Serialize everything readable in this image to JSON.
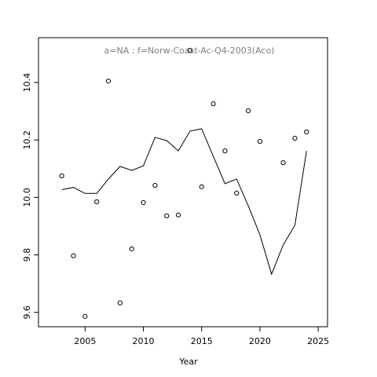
{
  "chart_data": {
    "type": "line",
    "title": "a=NA  :  f=Norw-Coast-Ac-Q4-2003(Aco)",
    "x_label": "Year",
    "x": [
      2003,
      2004,
      2005,
      2006,
      2007,
      2008,
      2009,
      2010,
      2011,
      2012,
      2013,
      2014,
      2015,
      2016,
      2017,
      2018,
      2019,
      2020,
      2021,
      2022,
      2023,
      2024
    ],
    "series": [
      {
        "style": "points",
        "color": "#000000",
        "values": [
          10.075,
          9.797,
          9.586,
          9.985,
          10.405,
          9.633,
          9.821,
          9.982,
          10.042,
          9.936,
          9.939,
          10.512,
          10.037,
          10.326,
          10.162,
          10.015,
          10.302,
          10.195,
          null,
          10.121,
          10.206,
          10.228
        ]
      },
      {
        "style": "line",
        "color": "#000000",
        "values": [
          10.027,
          10.035,
          10.014,
          10.014,
          10.064,
          10.108,
          10.094,
          10.11,
          10.209,
          10.198,
          10.162,
          10.231,
          10.239,
          10.143,
          10.048,
          10.064,
          9.971,
          9.87,
          9.733,
          9.835,
          9.903,
          10.162
        ]
      }
    ],
    "xlim": [
      2001.0,
      2025.8
    ],
    "ylim": [
      9.55,
      10.556
    ],
    "xticks": [
      2005,
      2010,
      2015,
      2020,
      2025
    ],
    "yticks": [
      9.6,
      9.8,
      {
        "value": 10,
        "label": "10.0"
      },
      10.2,
      10.4
    ]
  }
}
